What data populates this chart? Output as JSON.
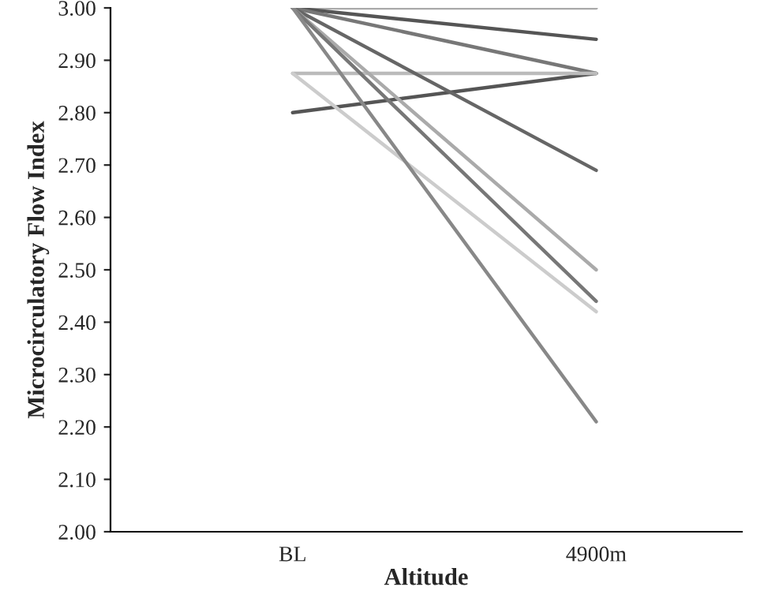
{
  "chart_data": {
    "type": "line",
    "xlabel": "Altitude",
    "ylabel": "Microcirculatory Flow Index",
    "categories": [
      "BL",
      "4900m"
    ],
    "series": [
      {
        "color": "#aaaaaa",
        "values": [
          3.0,
          3.0
        ]
      },
      {
        "color": "#555555",
        "values": [
          3.0,
          2.94
        ]
      },
      {
        "color": "#777777",
        "values": [
          3.0,
          2.875
        ]
      },
      {
        "color": "#555555",
        "values": [
          2.8,
          2.875
        ]
      },
      {
        "color": "#bbbbbb",
        "values": [
          2.875,
          2.875
        ]
      },
      {
        "color": "#666666",
        "values": [
          3.0,
          2.69
        ]
      },
      {
        "color": "#aaaaaa",
        "values": [
          3.0,
          2.5
        ]
      },
      {
        "color": "#777777",
        "values": [
          3.0,
          2.44
        ]
      },
      {
        "color": "#cccccc",
        "values": [
          2.875,
          2.42
        ]
      },
      {
        "color": "#888888",
        "values": [
          3.0,
          2.21
        ]
      }
    ],
    "ylim": [
      2.0,
      3.0
    ],
    "yticks": [
      {
        "value": 2.0,
        "label": "2.00"
      },
      {
        "value": 2.1,
        "label": "2.10"
      },
      {
        "value": 2.2,
        "label": "2.20"
      },
      {
        "value": 2.3,
        "label": "2.30"
      },
      {
        "value": 2.4,
        "label": "2.40"
      },
      {
        "value": 2.5,
        "label": "2.50"
      },
      {
        "value": 2.6,
        "label": "2.60"
      },
      {
        "value": 2.7,
        "label": "2.70"
      },
      {
        "value": 2.8,
        "label": "2.80"
      },
      {
        "value": 2.9,
        "label": "2.90"
      },
      {
        "value": 3.0,
        "label": "3.00"
      }
    ],
    "grid": false,
    "marker": "none",
    "line_style": "solid"
  }
}
